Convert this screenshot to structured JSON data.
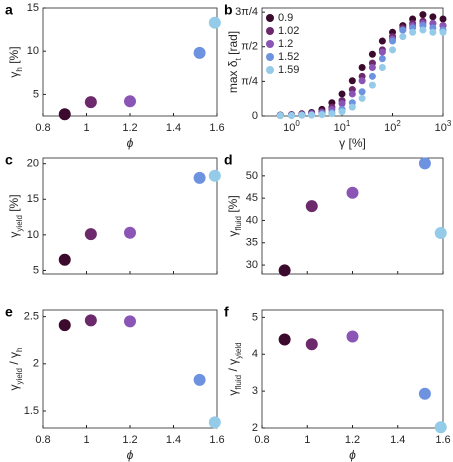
{
  "chart_data": [
    {
      "panel": "a",
      "type": "scatter",
      "x": [
        0.9,
        1.02,
        1.2,
        1.52,
        1.59
      ],
      "values": [
        2.7,
        4.1,
        4.2,
        9.8,
        13.3
      ],
      "colors": [
        "#3b0a2c",
        "#6c2a6c",
        "#8a55b5",
        "#6d92df",
        "#94cbe8"
      ],
      "xlim": [
        0.8,
        1.6
      ],
      "ylim": [
        2.5,
        15
      ],
      "xticks": [
        0.8,
        1,
        1.2,
        1.4,
        1.6
      ],
      "yticks": [
        5,
        10,
        15
      ],
      "show_xticklabels": true,
      "xlabel": [
        {
          "text": "ϕ"
        }
      ],
      "ylabel": [
        {
          "text": "γ"
        },
        {
          "sub": "h"
        },
        {
          "text": " [%]"
        }
      ]
    },
    {
      "panel": "b",
      "type": "scatter-series",
      "log_x": true,
      "x": [
        0.6,
        1,
        1.6,
        2.5,
        4,
        6.3,
        10,
        16,
        25,
        40,
        63,
        100,
        160,
        250,
        400,
        630,
        1000
      ],
      "series": [
        {
          "name": "0.9",
          "color": "#3b0a2c",
          "values": [
            0.02,
            0.03,
            0.05,
            0.08,
            0.15,
            0.3,
            0.5,
            0.8,
            1.1,
            1.4,
            1.7,
            1.9,
            2.05,
            2.2,
            2.3,
            2.25,
            2.2
          ]
        },
        {
          "name": "1.02",
          "color": "#6c2a6c",
          "values": [
            0.02,
            0.03,
            0.04,
            0.06,
            0.1,
            0.2,
            0.35,
            0.6,
            0.9,
            1.2,
            1.5,
            1.8,
            2.0,
            2.1,
            2.15,
            2.1,
            2.05
          ]
        },
        {
          "name": "1.2",
          "color": "#8a55b5",
          "values": [
            0.01,
            0.02,
            0.03,
            0.05,
            0.08,
            0.15,
            0.28,
            0.5,
            0.8,
            1.1,
            1.45,
            1.75,
            1.95,
            2.05,
            2.1,
            2.1,
            2.05
          ]
        },
        {
          "name": "1.52",
          "color": "#6d92df",
          "values": [
            0.01,
            0.01,
            0.02,
            0.03,
            0.05,
            0.08,
            0.15,
            0.3,
            0.55,
            0.9,
            1.3,
            1.7,
            1.95,
            2.0,
            2.05,
            2.0,
            1.95
          ]
        },
        {
          "name": "1.59",
          "color": "#94cbe8",
          "values": [
            0.01,
            0.01,
            0.02,
            0.02,
            0.03,
            0.05,
            0.1,
            0.2,
            0.4,
            0.7,
            1.1,
            1.5,
            1.8,
            1.9,
            1.95,
            1.9,
            1.9
          ]
        }
      ],
      "xlim": [
        0.26,
        1000
      ],
      "ylim": [
        0,
        2.45
      ],
      "xticks": [
        {
          "value": 1,
          "label": "10",
          "sup": "0"
        },
        {
          "value": 10,
          "label": "10",
          "sup": "1"
        },
        {
          "value": 100,
          "label": "10",
          "sup": "2"
        },
        {
          "value": 1000,
          "label": "10",
          "sup": "3"
        }
      ],
      "yticks": [
        0,
        {
          "value": 0.785,
          "label": "π/4"
        },
        {
          "value": 1.571,
          "label": "π/2"
        },
        {
          "value": 2.356,
          "label": "3π/4"
        }
      ],
      "show_xticklabels": true,
      "legend": "upper-left",
      "xlabel": [
        {
          "text": "γ [%]"
        }
      ],
      "ylabel": [
        {
          "text": "max δ"
        },
        {
          "sub": "t"
        },
        {
          "text": " [rad]"
        }
      ]
    },
    {
      "panel": "c",
      "type": "scatter",
      "x": [
        0.9,
        1.02,
        1.2,
        1.52,
        1.59
      ],
      "values": [
        6.5,
        10.1,
        10.3,
        18.0,
        18.3
      ],
      "colors": [
        "#3b0a2c",
        "#6c2a6c",
        "#8a55b5",
        "#6d92df",
        "#94cbe8"
      ],
      "xlim": [
        0.8,
        1.6
      ],
      "ylim": [
        4.5,
        20.8
      ],
      "xticks": [
        0.8,
        1,
        1.2,
        1.4,
        1.6
      ],
      "yticks": [
        5,
        10,
        15,
        20
      ],
      "show_xticklabels": false,
      "ylabel": [
        {
          "text": "γ"
        },
        {
          "sub": "yield"
        },
        {
          "text": " [%]"
        }
      ]
    },
    {
      "panel": "d",
      "type": "scatter",
      "x": [
        0.9,
        1.02,
        1.2,
        1.52,
        1.59
      ],
      "values": [
        28.8,
        43.2,
        46.2,
        52.8,
        37.2
      ],
      "colors": [
        "#3b0a2c",
        "#6c2a6c",
        "#8a55b5",
        "#6d92df",
        "#94cbe8"
      ],
      "xlim": [
        0.8,
        1.6
      ],
      "ylim": [
        28,
        54
      ],
      "xticks": [
        0.8,
        1,
        1.2,
        1.4,
        1.6
      ],
      "yticks": [
        30,
        35,
        40,
        45,
        50
      ],
      "show_xticklabels": false,
      "ylabel": [
        {
          "text": "γ"
        },
        {
          "sub": "fluid"
        },
        {
          "text": " [%]"
        }
      ]
    },
    {
      "panel": "e",
      "type": "scatter",
      "x": [
        0.9,
        1.02,
        1.2,
        1.52,
        1.59
      ],
      "values": [
        2.41,
        2.46,
        2.45,
        1.83,
        1.38
      ],
      "colors": [
        "#3b0a2c",
        "#6c2a6c",
        "#8a55b5",
        "#6d92df",
        "#94cbe8"
      ],
      "xlim": [
        0.8,
        1.6
      ],
      "ylim": [
        1.32,
        2.57
      ],
      "xticks": [
        0.8,
        1,
        1.2,
        1.4,
        1.6
      ],
      "yticks": [
        1.5,
        2,
        2.5
      ],
      "show_xticklabels": true,
      "xlabel": [
        {
          "text": "ϕ"
        }
      ],
      "ylabel": [
        {
          "text": "γ"
        },
        {
          "sub": "yield"
        },
        {
          "text": " / γ"
        },
        {
          "sub": "h"
        }
      ]
    },
    {
      "panel": "f",
      "type": "scatter",
      "x": [
        0.9,
        1.02,
        1.2,
        1.52,
        1.59
      ],
      "values": [
        4.4,
        4.27,
        4.48,
        2.93,
        2.02
      ],
      "colors": [
        "#3b0a2c",
        "#6c2a6c",
        "#8a55b5",
        "#6d92df",
        "#94cbe8"
      ],
      "xlim": [
        0.8,
        1.6
      ],
      "ylim": [
        2,
        5.2
      ],
      "xticks": [
        0.8,
        1,
        1.2,
        1.4,
        1.6
      ],
      "yticks": [
        2,
        3,
        4,
        5
      ],
      "show_xticklabels": true,
      "xlabel": [
        {
          "text": "ϕ"
        }
      ],
      "ylabel": [
        {
          "text": "γ"
        },
        {
          "sub": "fluid"
        },
        {
          "text": " / γ"
        },
        {
          "sub": "yield"
        }
      ]
    }
  ]
}
